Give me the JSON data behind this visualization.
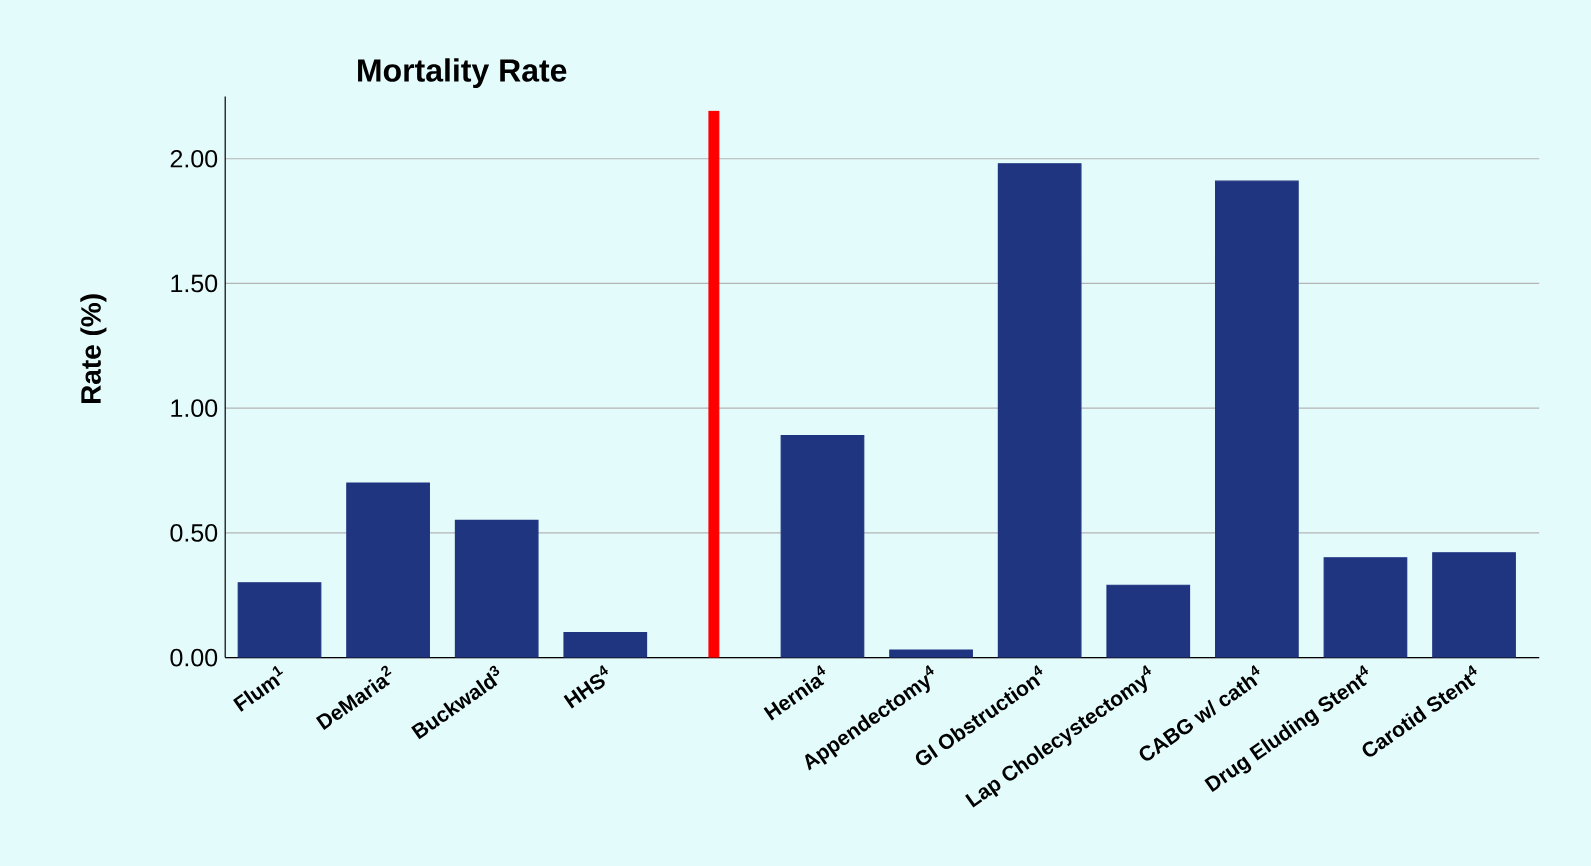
{
  "chart_data": {
    "type": "bar",
    "title": "Mortality Rate",
    "ylabel": "Rate (%)",
    "categories": [
      "Flum$^{1}$",
      "DeMaria$^{2}$",
      "Buckwald$^{3}$",
      "HHS$^{4}$",
      null,
      "Hernia$^{4}$",
      "Appendectomy$^{4}$",
      "GI Obstruction$^{4}$",
      "Lap Cholecystectomy$^{4}$",
      "CABG w/ cath$^{4}$",
      "Drug Eluding Stent$^{4}$",
      "Carotid Stent$^{4}$"
    ],
    "series": [
      {
        "color": "#1f3580",
        "values": [
          0.3,
          0.7,
          0.55,
          0.1,
          null,
          0.89,
          0.03,
          1.98,
          0.29,
          1.91,
          0.4,
          0.42
        ]
      },
      {
        "color": "#ff0000",
        "values": [
          null,
          null,
          null,
          null,
          2.19,
          null,
          null,
          null,
          null,
          null,
          null,
          null
        ]
      }
    ],
    "ylim": [
      0,
      2.25
    ],
    "yticks": [
      {
        "value": 0,
        "label": "0.00"
      },
      {
        "value": 0.5,
        "label": "0.50"
      },
      {
        "value": 1,
        "label": "1.00"
      },
      {
        "value": 1.5,
        "label": "1.50"
      },
      {
        "value": 2,
        "label": "2.00"
      }
    ],
    "grid": "y"
  }
}
